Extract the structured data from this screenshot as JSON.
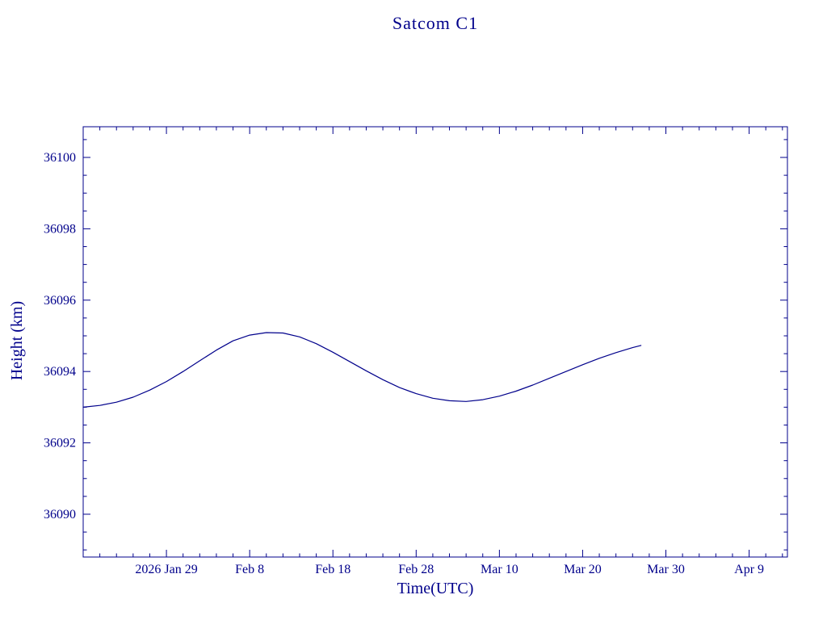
{
  "page": {
    "background": "#ffffff",
    "accent_color": "#00008b"
  },
  "chart_data": {
    "type": "line",
    "title": "Satcom C1",
    "xlabel": "Time(UTC)",
    "ylabel": "Height (km)",
    "line_color": "#00008b",
    "axis_color": "#00008b",
    "grid": false,
    "legend": "none",
    "x_unit": "days (axis labeled by UTC calendar date, day 0 = start of plotted track)",
    "x_domain": [
      0,
      84.6
    ],
    "y_domain": [
      36088.8,
      36100.86
    ],
    "x_minor_step": 2,
    "y_minor_step": 0.5,
    "x_ticks": [
      {
        "pos": 10,
        "label": "2026 Jan 29"
      },
      {
        "pos": 20,
        "label": "Feb 8"
      },
      {
        "pos": 30,
        "label": "Feb 18"
      },
      {
        "pos": 40,
        "label": "Feb 28"
      },
      {
        "pos": 50,
        "label": "Mar 10"
      },
      {
        "pos": 60,
        "label": "Mar 20"
      },
      {
        "pos": 70,
        "label": "Mar 30"
      },
      {
        "pos": 80,
        "label": "Apr 9"
      }
    ],
    "y_ticks": [
      {
        "pos": 36090,
        "label": "36090"
      },
      {
        "pos": 36092,
        "label": "36092"
      },
      {
        "pos": 36094,
        "label": "36094"
      },
      {
        "pos": 36096,
        "label": "36096"
      },
      {
        "pos": 36098,
        "label": "36098"
      },
      {
        "pos": 36100,
        "label": "36100"
      }
    ],
    "series": [
      {
        "name": "Satcom C1 height",
        "points": [
          [
            0,
            36093.0
          ],
          [
            2,
            36093.05
          ],
          [
            4,
            36093.14
          ],
          [
            6,
            36093.28
          ],
          [
            8,
            36093.48
          ],
          [
            10,
            36093.72
          ],
          [
            12,
            36094.0
          ],
          [
            14,
            36094.3
          ],
          [
            16,
            36094.6
          ],
          [
            18,
            36094.86
          ],
          [
            20,
            36095.02
          ],
          [
            22,
            36095.09
          ],
          [
            24,
            36095.08
          ],
          [
            26,
            36094.97
          ],
          [
            28,
            36094.78
          ],
          [
            30,
            36094.54
          ],
          [
            32,
            36094.28
          ],
          [
            34,
            36094.02
          ],
          [
            36,
            36093.77
          ],
          [
            38,
            36093.55
          ],
          [
            40,
            36093.38
          ],
          [
            42,
            36093.25
          ],
          [
            44,
            36093.18
          ],
          [
            46,
            36093.16
          ],
          [
            48,
            36093.21
          ],
          [
            50,
            36093.31
          ],
          [
            52,
            36093.45
          ],
          [
            54,
            36093.62
          ],
          [
            56,
            36093.81
          ],
          [
            58,
            36094.0
          ],
          [
            60,
            36094.19
          ],
          [
            62,
            36094.37
          ],
          [
            64,
            36094.53
          ],
          [
            66,
            36094.67
          ],
          [
            67,
            36094.73
          ]
        ]
      }
    ]
  }
}
